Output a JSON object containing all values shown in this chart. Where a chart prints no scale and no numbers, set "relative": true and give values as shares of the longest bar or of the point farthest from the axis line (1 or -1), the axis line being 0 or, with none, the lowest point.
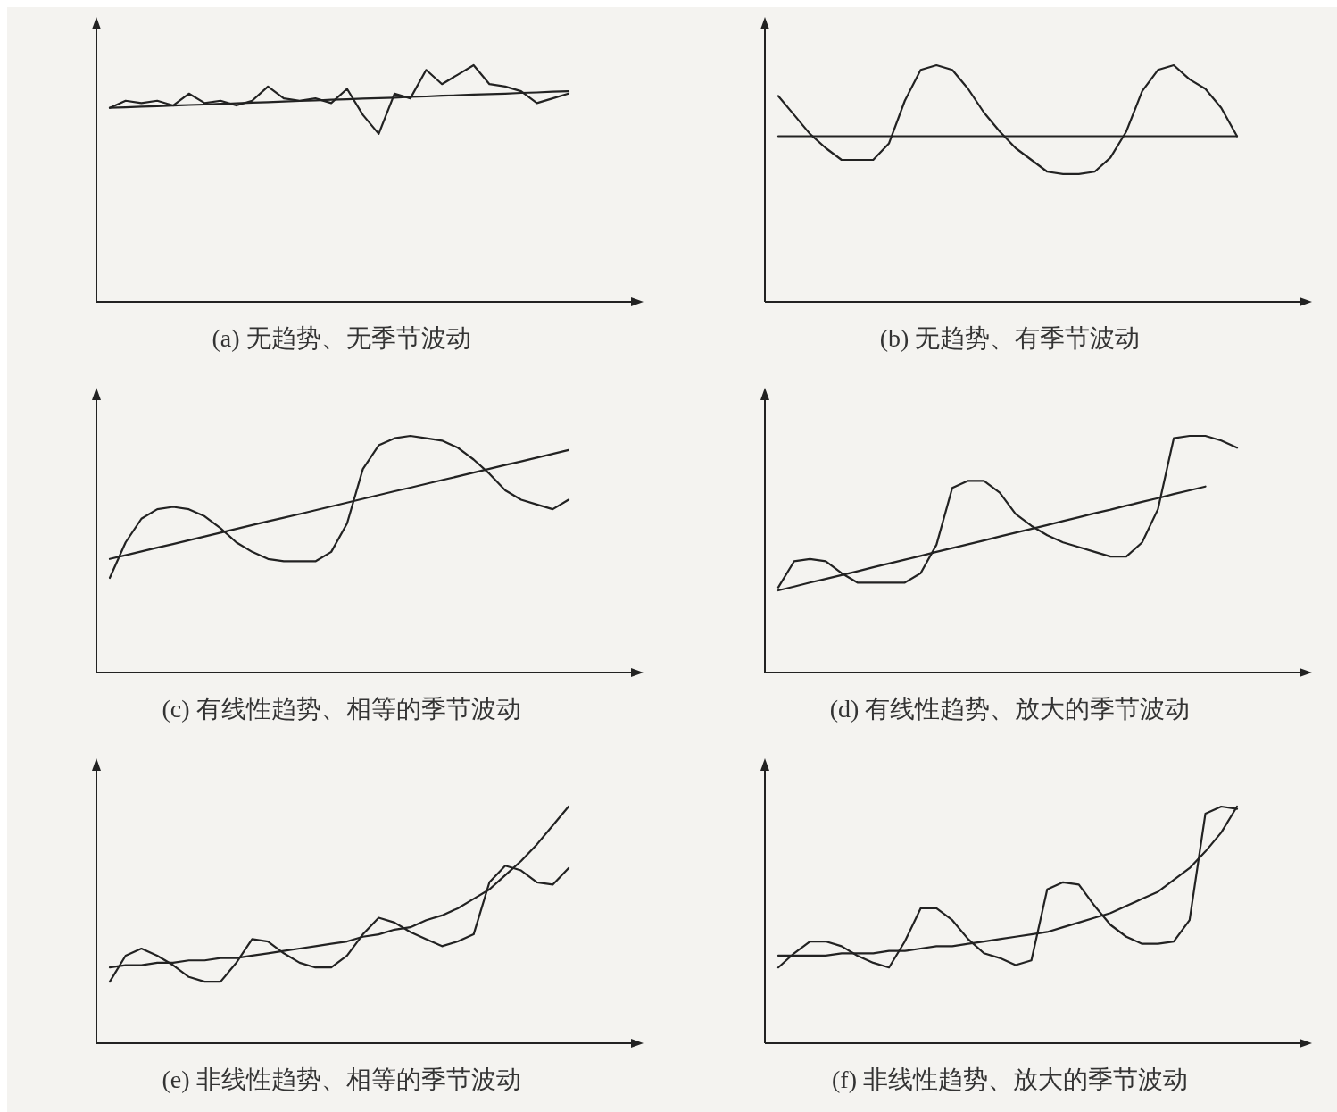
{
  "chart_data": [
    {
      "type": "line",
      "title": "(a) 无趋势、无季节波动",
      "relative": true,
      "categories": [
        null,
        null,
        null,
        null,
        null,
        null,
        null,
        null,
        null,
        null,
        null,
        null,
        null,
        null,
        null,
        null,
        null,
        null,
        null,
        null,
        null,
        null,
        null,
        null,
        null,
        null,
        null,
        null,
        null,
        null
      ],
      "series": [
        {
          "color": "#222222",
          "values": [
            0.82,
            0.85,
            0.84,
            0.85,
            0.83,
            0.88,
            0.84,
            0.85,
            0.83,
            0.85,
            0.91,
            0.86,
            0.85,
            0.86,
            0.84,
            0.9,
            0.79,
            0.71,
            0.88,
            0.86,
            0.98,
            0.92,
            0.96,
            1,
            0.92,
            0.91,
            0.89,
            0.84,
            0.86,
            0.88
          ]
        },
        {
          "color": "#222222",
          "values": [
            0.82,
            0.822,
            0.825,
            0.827,
            0.83,
            0.832,
            0.834,
            0.837,
            0.839,
            0.842,
            0.844,
            0.847,
            0.849,
            0.851,
            0.854,
            0.856,
            0.859,
            0.861,
            0.863,
            0.866,
            0.868,
            0.871,
            0.873,
            0.876,
            0.878,
            0.88,
            0.883,
            0.885,
            0.888,
            0.89
          ]
        }
      ]
    },
    {
      "type": "line",
      "title": "(b) 无趋势、有季节波动",
      "relative": true,
      "categories": [
        null,
        null,
        null,
        null,
        null,
        null,
        null,
        null,
        null,
        null,
        null,
        null,
        null,
        null,
        null,
        null,
        null,
        null,
        null,
        null,
        null,
        null,
        null,
        null,
        null,
        null,
        null,
        null,
        null,
        null
      ],
      "series": [
        {
          "color": "#222222",
          "values": [
            0.87,
            0.79,
            0.71,
            0.65,
            0.6,
            0.6,
            0.6,
            0.67,
            0.85,
            0.98,
            1,
            0.98,
            0.9,
            0.8,
            0.72,
            0.65,
            0.6,
            0.55,
            0.54,
            0.54,
            0.55,
            0.61,
            0.72,
            0.89,
            0.98,
            1,
            0.94,
            0.9,
            0.82,
            0.7
          ]
        },
        {
          "color": "#222222",
          "values": [
            0.7,
            0.7,
            0.7,
            0.7,
            0.7,
            0.7,
            0.7,
            0.7,
            0.7,
            0.7,
            0.7,
            0.7,
            0.7,
            0.7,
            0.7,
            0.7,
            0.7,
            0.7,
            0.7,
            0.7,
            0.7,
            0.7,
            0.7,
            0.7,
            0.7,
            0.7,
            0.7,
            0.7,
            0.7,
            0.7
          ]
        }
      ]
    },
    {
      "type": "line",
      "title": "(c) 有线性趋势、相等的季节波动",
      "relative": true,
      "categories": [
        null,
        null,
        null,
        null,
        null,
        null,
        null,
        null,
        null,
        null,
        null,
        null,
        null,
        null,
        null,
        null,
        null,
        null,
        null,
        null,
        null,
        null,
        null,
        null,
        null,
        null,
        null,
        null,
        null,
        null
      ],
      "series": [
        {
          "color": "#222222",
          "values": [
            0.4,
            0.55,
            0.65,
            0.69,
            0.7,
            0.69,
            0.66,
            0.61,
            0.55,
            0.51,
            0.48,
            0.47,
            0.47,
            0.47,
            0.51,
            0.63,
            0.86,
            0.96,
            0.99,
            1,
            0.99,
            0.98,
            0.95,
            0.9,
            0.84,
            0.77,
            0.73,
            0.71,
            0.69,
            0.73
          ]
        },
        {
          "color": "#222222",
          "values": [
            0.48,
            0.496,
            0.512,
            0.528,
            0.543,
            0.559,
            0.575,
            0.591,
            0.607,
            0.623,
            0.639,
            0.654,
            0.67,
            0.686,
            0.702,
            0.718,
            0.734,
            0.75,
            0.766,
            0.781,
            0.797,
            0.813,
            0.829,
            0.845,
            0.861,
            0.877,
            0.892,
            0.908,
            0.924,
            0.94
          ]
        }
      ]
    },
    {
      "type": "line",
      "title": "(d) 有线性趋势、放大的季节波动",
      "relative": true,
      "categories": [
        null,
        null,
        null,
        null,
        null,
        null,
        null,
        null,
        null,
        null,
        null,
        null,
        null,
        null,
        null,
        null,
        null,
        null,
        null,
        null,
        null,
        null,
        null,
        null,
        null,
        null,
        null,
        null,
        null,
        null
      ],
      "series": [
        {
          "color": "#222222",
          "values": [
            0.36,
            0.47,
            0.48,
            0.47,
            0.42,
            0.38,
            0.38,
            0.38,
            0.38,
            0.42,
            0.54,
            0.78,
            0.81,
            0.81,
            0.76,
            0.67,
            0.62,
            0.58,
            0.55,
            0.53,
            0.51,
            0.49,
            0.49,
            0.55,
            0.69,
            0.99,
            1,
            1,
            0.98,
            0.95
          ]
        },
        {
          "color": "#222222",
          "values": [
            0.347,
            0.363,
            0.38,
            0.396,
            0.412,
            0.428,
            0.445,
            0.461,
            0.477,
            0.493,
            0.51,
            0.526,
            0.542,
            0.558,
            0.575,
            0.591,
            0.607,
            0.623,
            0.64,
            0.656,
            0.673,
            0.688,
            0.705,
            0.721,
            0.737,
            0.754,
            0.77,
            0.786,
            null,
            null
          ]
        }
      ]
    },
    {
      "type": "line",
      "title": "(e) 非线性趋势、相等的季节波动",
      "relative": true,
      "categories": [
        null,
        null,
        null,
        null,
        null,
        null,
        null,
        null,
        null,
        null,
        null,
        null,
        null,
        null,
        null,
        null,
        null,
        null,
        null,
        null,
        null,
        null,
        null,
        null,
        null,
        null,
        null,
        null,
        null,
        null
      ],
      "series": [
        {
          "color": "#222222",
          "values": [
            0.26,
            0.37,
            0.4,
            0.37,
            0.33,
            0.28,
            0.26,
            0.26,
            0.34,
            0.44,
            0.43,
            0.38,
            0.34,
            0.32,
            0.32,
            0.37,
            0.46,
            0.53,
            0.51,
            0.47,
            0.44,
            0.41,
            0.43,
            0.46,
            0.68,
            0.75,
            0.73,
            0.68,
            0.67,
            0.74
          ]
        },
        {
          "color": "#222222",
          "values": [
            0.32,
            0.33,
            0.33,
            0.34,
            0.34,
            0.35,
            0.35,
            0.36,
            0.36,
            0.37,
            0.38,
            0.39,
            0.4,
            0.41,
            0.42,
            0.43,
            0.45,
            0.46,
            0.48,
            0.49,
            0.52,
            0.54,
            0.57,
            0.61,
            0.65,
            0.71,
            0.77,
            0.84,
            0.92,
            1
          ]
        }
      ]
    },
    {
      "type": "line",
      "title": "(f) 非线性趋势、放大的季节波动",
      "relative": true,
      "categories": [
        null,
        null,
        null,
        null,
        null,
        null,
        null,
        null,
        null,
        null,
        null,
        null,
        null,
        null,
        null,
        null,
        null,
        null,
        null,
        null,
        null,
        null,
        null,
        null,
        null,
        null,
        null,
        null,
        null,
        null
      ],
      "series": [
        {
          "color": "#222222",
          "values": [
            0.32,
            0.38,
            0.43,
            0.43,
            0.41,
            0.37,
            0.34,
            0.32,
            0.43,
            0.57,
            0.57,
            0.52,
            0.44,
            0.38,
            0.36,
            0.33,
            0.35,
            0.65,
            0.68,
            0.67,
            0.58,
            0.5,
            0.45,
            0.42,
            0.42,
            0.43,
            0.52,
            0.97,
            1,
            0.99
          ]
        },
        {
          "color": "#222222",
          "values": [
            0.37,
            0.37,
            0.37,
            0.37,
            0.38,
            0.38,
            0.38,
            0.39,
            0.39,
            0.4,
            0.41,
            0.41,
            0.42,
            0.43,
            0.44,
            0.45,
            0.46,
            0.47,
            0.49,
            0.51,
            0.53,
            0.55,
            0.58,
            0.61,
            0.64,
            0.69,
            0.74,
            0.81,
            0.89,
            1
          ]
        }
      ]
    }
  ]
}
